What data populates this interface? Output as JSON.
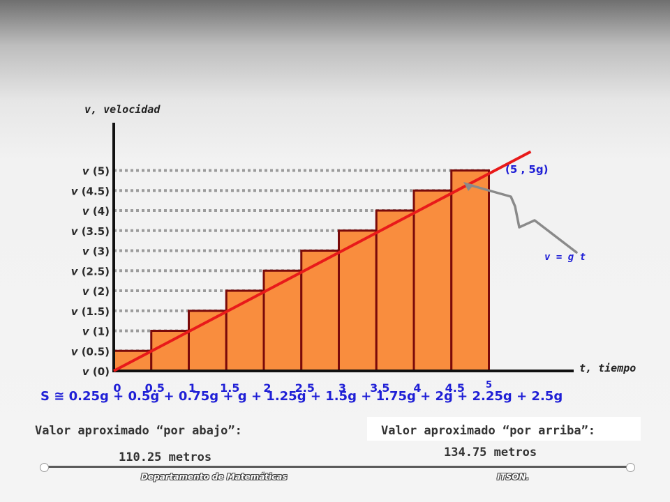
{
  "chart_data": {
    "type": "bar",
    "y_axis_title": "v,  velocidad",
    "x_axis_title": "t,  tiempo",
    "x_ticks": [
      "0",
      "0.5",
      "1",
      "1.5",
      "2",
      "2.5",
      "3",
      "3.5",
      "4",
      "4.5",
      "5"
    ],
    "y_ticks": [
      {
        "label": "v (0)",
        "t": 0
      },
      {
        "label": "v (0.5)",
        "t": 0.5
      },
      {
        "label": "v (1)",
        "t": 1
      },
      {
        "label": "v (1.5)",
        "t": 1.5
      },
      {
        "label": "v (2)",
        "t": 2
      },
      {
        "label": "v (2.5)",
        "t": 2.5
      },
      {
        "label": "v (3)",
        "t": 3
      },
      {
        "label": "v (3.5)",
        "t": 3.5
      },
      {
        "label": "v (4)",
        "t": 4
      },
      {
        "label": "v (4.5)",
        "t": 4.5
      },
      {
        "label": "v (5)",
        "t": 5
      }
    ],
    "bars": [
      {
        "t_start": 0,
        "t_end": 0.5,
        "height_t": 0.5
      },
      {
        "t_start": 0.5,
        "t_end": 1,
        "height_t": 1
      },
      {
        "t_start": 1,
        "t_end": 1.5,
        "height_t": 1.5
      },
      {
        "t_start": 1.5,
        "t_end": 2,
        "height_t": 2
      },
      {
        "t_start": 2,
        "t_end": 2.5,
        "height_t": 2.5
      },
      {
        "t_start": 2.5,
        "t_end": 3,
        "height_t": 3
      },
      {
        "t_start": 3,
        "t_end": 3.5,
        "height_t": 3.5
      },
      {
        "t_start": 3.5,
        "t_end": 4,
        "height_t": 4
      },
      {
        "t_start": 4,
        "t_end": 4.5,
        "height_t": 4.5
      },
      {
        "t_start": 4.5,
        "t_end": 5,
        "height_t": 5
      }
    ],
    "line": {
      "label": "v = g t",
      "from_t": 0,
      "to_t": 5.4
    },
    "point_label": "(5 , 5g)",
    "colors": {
      "bar_fill": "#f98d3e",
      "bar_stroke": "#7a0a0a",
      "line": "#e81a1a",
      "axis": "#111111",
      "guide": "#9b9b9b",
      "annotation": "#8a8a8a"
    }
  },
  "sum_text": "S ≅ 0.25g  + 0.5g  + 0.75g  + g  + 1.25g  + 1.5g  + 1.75g  + 2g  +  2.25g + 2.5g",
  "lower_label": "Valor aproximado “por abajo”:",
  "lower_value": "110.25 metros",
  "upper_label": "Valor aproximado “por arriba”:",
  "upper_value": "134.75 metros",
  "footer_left": "Departamento  de  Matemáticas",
  "footer_right": "ITSON."
}
